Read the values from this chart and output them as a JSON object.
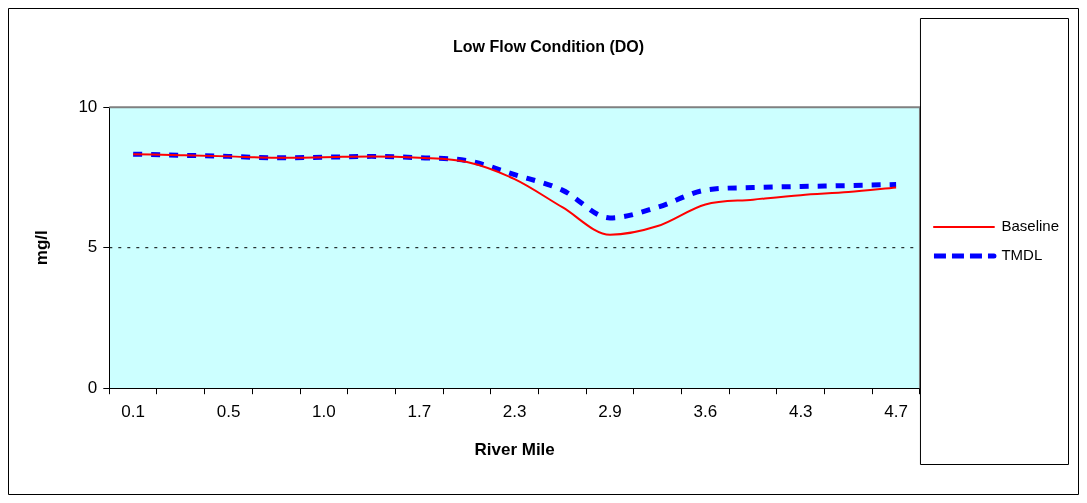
{
  "chart_data": {
    "type": "line",
    "title": "Low Flow Condition (DO)",
    "xlabel": "River Mile",
    "ylabel": "mg/l",
    "categories": [
      "0.1",
      null,
      "0.5",
      null,
      "1.0",
      null,
      "1.7",
      null,
      "2.3",
      null,
      "2.9",
      null,
      "3.6",
      null,
      "4.3",
      null,
      "4.7"
    ],
    "series": [
      {
        "name": "Baseline",
        "color": "#ff0000",
        "line_style": "solid",
        "values": [
          8.33,
          8.29,
          8.25,
          8.2,
          8.22,
          8.25,
          8.2,
          8.05,
          7.44,
          6.44,
          5.46,
          5.77,
          6.54,
          6.71,
          6.87,
          6.98,
          7.14
        ]
      },
      {
        "name": "TMDL",
        "color": "#0000ff",
        "line_style": "dashed",
        "values": [
          8.33,
          8.29,
          8.25,
          8.2,
          8.22,
          8.25,
          8.2,
          8.1,
          7.6,
          7.05,
          6.06,
          6.44,
          7.05,
          7.14,
          7.18,
          7.21,
          7.25
        ]
      }
    ],
    "ylim": [
      0,
      10
    ],
    "yticks": [
      0,
      5,
      10
    ],
    "ref_lines": [
      {
        "axis": "y",
        "value": 5,
        "line_style": "dotted",
        "color": "#000000"
      }
    ],
    "grid": false,
    "legend": "right",
    "marker": "none"
  }
}
